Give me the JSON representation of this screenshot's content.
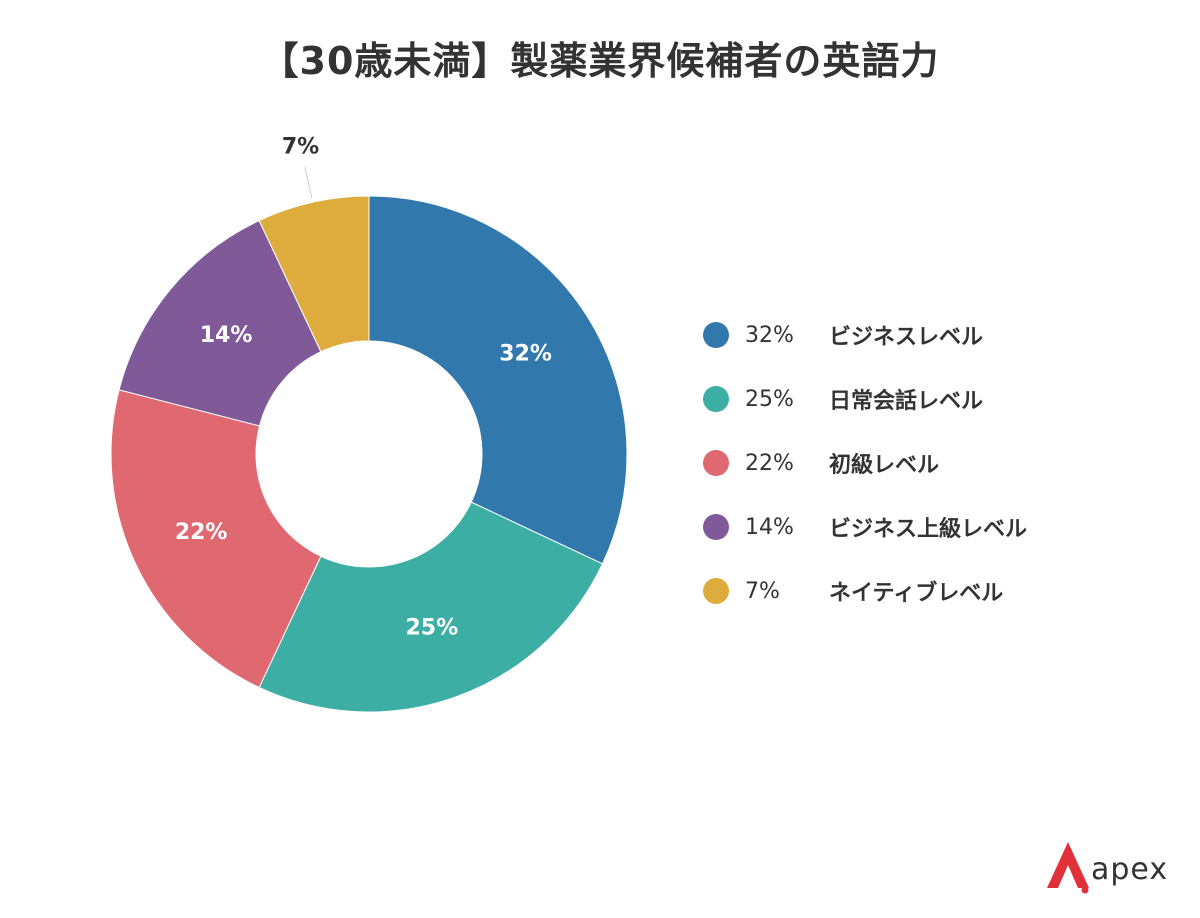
{
  "title": "【30歳未満】製薬業界候補者の英語力",
  "chart_data": {
    "type": "pie",
    "donut": true,
    "categories": [
      "ビジネスレベル",
      "日常会話レベル",
      "初級レベル",
      "ビジネス上級レベル",
      "ネイティブレベル"
    ],
    "values": [
      32,
      25,
      22,
      14,
      7
    ],
    "labels": [
      "32%",
      "25%",
      "22%",
      "14%",
      "7%"
    ],
    "colors": [
      "#3178AD",
      "#3CAEA3",
      "#E06871",
      "#805A98",
      "#DDAC3C"
    ],
    "legend_position": "right"
  },
  "logo": {
    "text": "apex",
    "mark_color": "#E0303A"
  }
}
